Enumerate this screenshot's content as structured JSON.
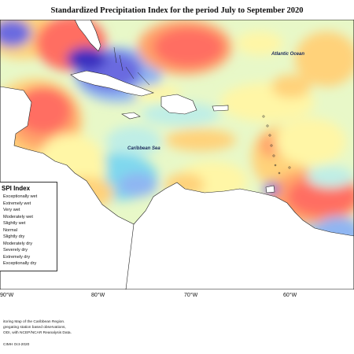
{
  "title": "Standardized Precipitation Index for the period July to September 2020",
  "map_labels": {
    "atlantic": "Atlantic Ocean",
    "caribbean": "Caribbean Sea"
  },
  "legend": {
    "title": "SPI Index",
    "items": [
      {
        "label": "Exceptionally wet",
        "color": "#3a2fbf"
      },
      {
        "label": "Extremely wet",
        "color": "#6a6ae0"
      },
      {
        "label": "Very wet",
        "color": "#8fb6f2"
      },
      {
        "label": "Moderately wet",
        "color": "#7fd8ee"
      },
      {
        "label": "Slightly wet",
        "color": "#bfeee6"
      },
      {
        "label": "Normal",
        "color": "#e8f8c8"
      },
      {
        "label": "Slightly dry",
        "color": "#fff6a6"
      },
      {
        "label": "Moderately dry",
        "color": "#ffd27a"
      },
      {
        "label": "Severely dry",
        "color": "#ffa36a"
      },
      {
        "label": "Extremely dry",
        "color": "#ff6e62"
      },
      {
        "label": "Exceptionally dry",
        "color": "#e63a4a"
      }
    ]
  },
  "longitude_ticks": [
    "90°W",
    "80°W",
    "70°W",
    "60°W"
  ],
  "footnotes": [
    "itoring Map of the Caribbean Region.",
    "gregating station based observations,",
    "ODI, with NCEP/NCAR Reanalysis Data.",
    "CIMH Oct-2020"
  ],
  "colors": {
    "land": "#ffffff",
    "coast": "#222222",
    "background": "#e8f8c8"
  }
}
